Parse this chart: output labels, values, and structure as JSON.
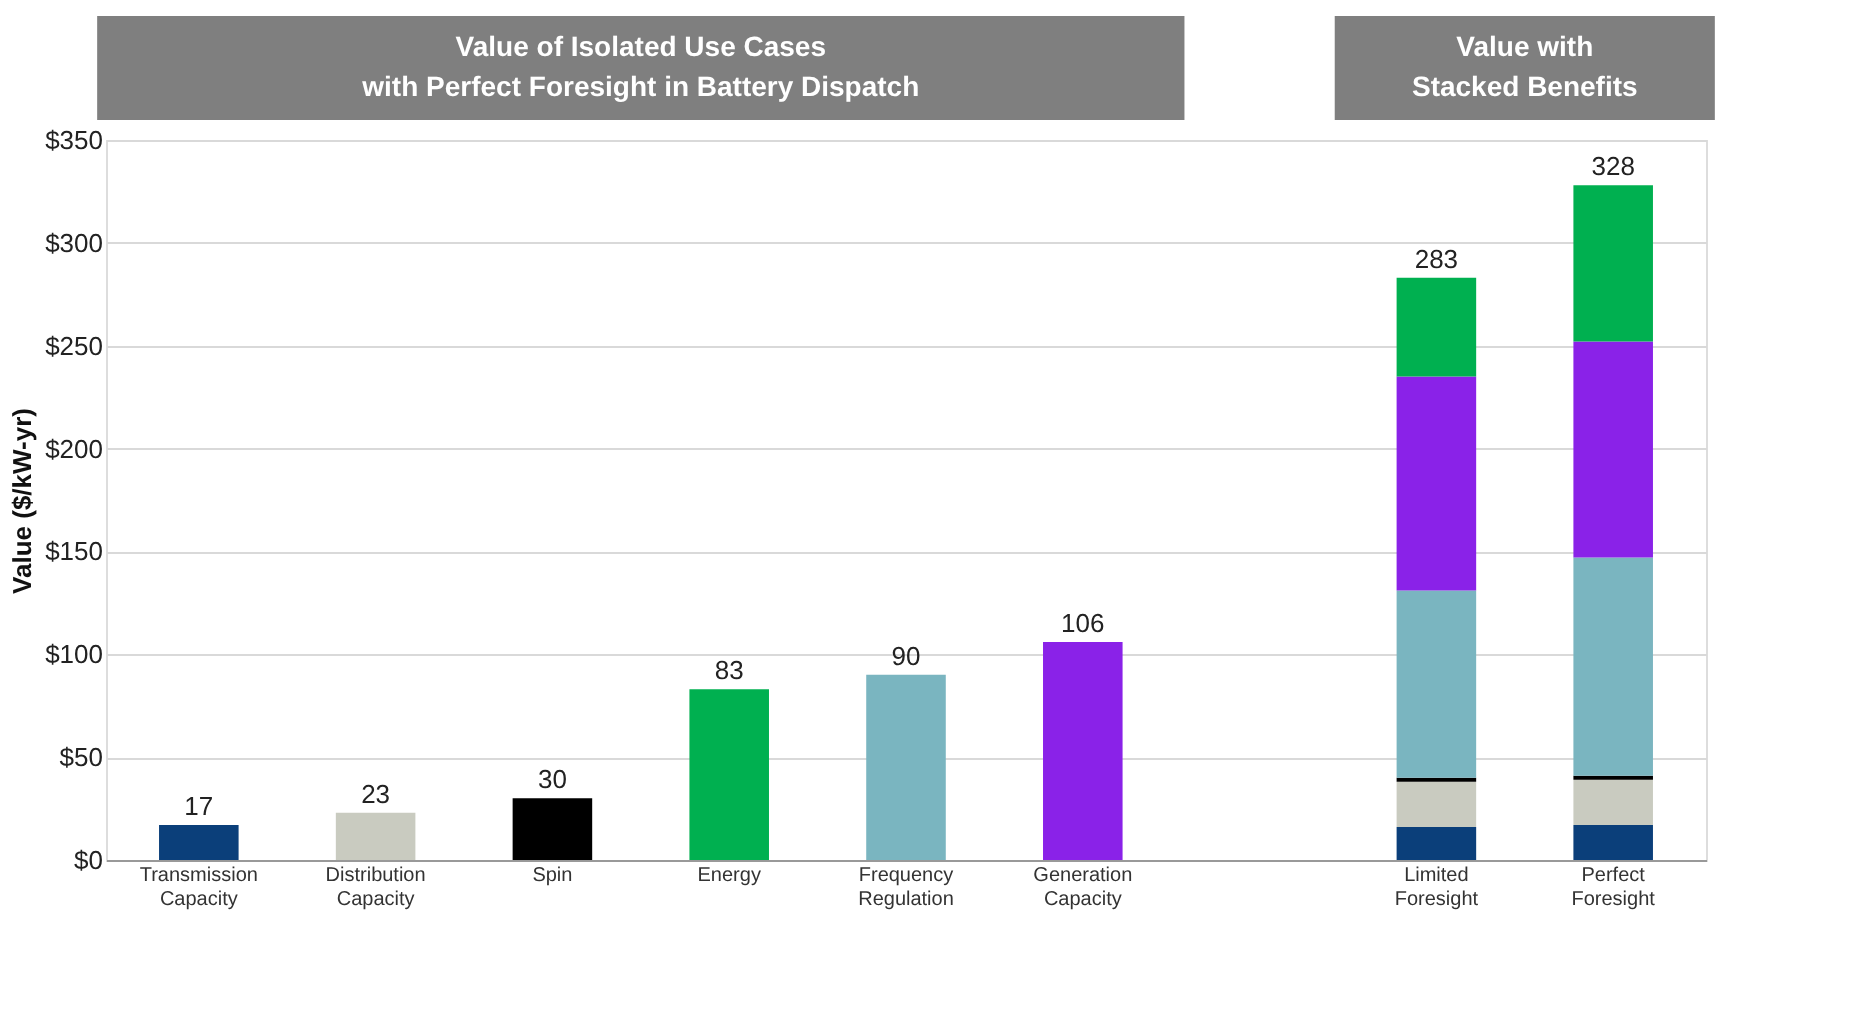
{
  "chart_data": {
    "type": "bar",
    "stacked": true,
    "ylabel": "Value ($/kW-yr)",
    "annotations": [
      "Value of Isolated Use Cases\nwith Perfect Foresight in Battery Dispatch",
      "Value with\nStacked Benefits"
    ],
    "categories": [
      "Transmission Capacity",
      "Distribution Capacity",
      "Spin",
      "Energy",
      "Frequency Regulation",
      "Generation Capacity",
      null,
      "Limited Foresight",
      "Perfect Foresight"
    ],
    "series": [
      {
        "color": "#0b3f7a",
        "values": [
          17,
          null,
          null,
          null,
          null,
          null,
          null,
          16,
          17
        ]
      },
      {
        "color": "#c9cbc0",
        "values": [
          null,
          23,
          null,
          null,
          null,
          null,
          null,
          22,
          22
        ]
      },
      {
        "color": "#000000",
        "values": [
          null,
          null,
          30,
          null,
          null,
          null,
          null,
          2,
          2
        ]
      },
      {
        "color": "#7ab5c0",
        "values": [
          null,
          null,
          null,
          null,
          90,
          null,
          null,
          91,
          106
        ]
      },
      {
        "color": "#8a22e8",
        "values": [
          null,
          null,
          null,
          null,
          null,
          106,
          null,
          104,
          105
        ]
      },
      {
        "color": "#00b050",
        "values": [
          null,
          null,
          null,
          83,
          null,
          null,
          null,
          48,
          76
        ]
      }
    ],
    "totals": [
      "17",
      "23",
      "30",
      "83",
      "90",
      "106",
      null,
      "283",
      "328"
    ],
    "grid": "y",
    "ylim": [
      0,
      350
    ],
    "yticks": [
      {
        "value": 0,
        "label": "$0"
      },
      {
        "value": 50,
        "label": "$50"
      },
      {
        "value": 100,
        "label": "$100"
      },
      {
        "value": 150,
        "label": "$150"
      },
      {
        "value": 200,
        "label": "$200"
      },
      {
        "value": 250,
        "label": "$250"
      },
      {
        "value": 300,
        "label": "$300"
      },
      {
        "value": 350,
        "label": "$350"
      }
    ]
  }
}
